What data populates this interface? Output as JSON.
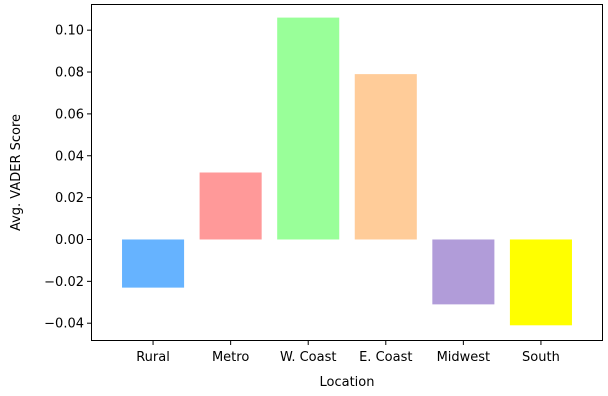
{
  "chart_data": {
    "type": "bar",
    "title": "",
    "xlabel": "Location",
    "ylabel": "Avg. VADER Score",
    "categories": [
      "Rural",
      "Metro",
      "W. Coast",
      "E. Coast",
      "Midwest",
      "South"
    ],
    "values": [
      -0.023,
      0.032,
      0.106,
      0.079,
      -0.031,
      -0.041
    ],
    "colors": [
      "#66b3ff",
      "#ff9999",
      "#99ff99",
      "#ffcc99",
      "#b19cd9",
      "#ffff00"
    ],
    "ylim": [
      -0.0485,
      0.1125
    ],
    "yticks": [
      -0.04,
      -0.02,
      0.0,
      0.02,
      0.04,
      0.06,
      0.08,
      0.1
    ],
    "ytick_labels": [
      "−0.04",
      "−0.02",
      "0.00",
      "0.02",
      "0.04",
      "0.06",
      "0.08",
      "0.10"
    ],
    "grid": false,
    "legend": "none"
  }
}
